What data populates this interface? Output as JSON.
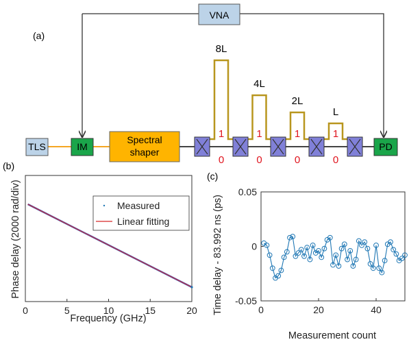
{
  "panel_a": {
    "label": "(a)",
    "vna": "VNA",
    "tls": "TLS",
    "im": "IM",
    "shaper_line1": "Spectral",
    "shaper_line2": "shaper",
    "pd": "PD",
    "delay_labels": [
      "8L",
      "4L",
      "2L",
      "L"
    ],
    "state_one": "1",
    "state_zero": "0",
    "colors": {
      "box_blue": "#bcd3e8",
      "box_green": "#1aa54a",
      "shaper_orange": "#ffb400",
      "delay_line": "#b8961e",
      "switch": "#8080d8",
      "fiber_orange": "#f5a623"
    }
  },
  "chart_data": [
    {
      "panel": "(b)",
      "type": "scatter",
      "xlabel": "Frequency (GHz)",
      "ylabel": "Phase delay (2000 rad/div)",
      "xlim": [
        0,
        20
      ],
      "xticks": [
        "0",
        "5",
        "10",
        "15",
        "20"
      ],
      "yticks_shown": false,
      "grid": false,
      "legend_position": "top-right",
      "series": [
        {
          "name": "Measured",
          "style": "dots",
          "color": "#1f77b4",
          "x": [
            0.3,
            20
          ],
          "y": [
            0,
            -5.1
          ]
        },
        {
          "name": "Linear fitting",
          "style": "line",
          "color": "#d62728",
          "x": [
            0.3,
            20
          ],
          "y": [
            0,
            -5.1
          ]
        }
      ]
    },
    {
      "panel": "(c)",
      "type": "line",
      "xlabel": "Measurement count",
      "ylabel": "Time delay - 83.992 ns (ps)",
      "xlim": [
        0,
        50
      ],
      "ylim": [
        -0.05,
        0.05
      ],
      "xticks": [
        "0",
        "20",
        "40"
      ],
      "yticks": [
        "-0.05",
        "0",
        "0.05"
      ],
      "grid": false,
      "series": [
        {
          "marker": "circle",
          "color": "#1f77b4",
          "x": [
            1,
            2,
            3,
            4,
            5,
            6,
            7,
            8,
            9,
            10,
            11,
            12,
            13,
            14,
            15,
            16,
            17,
            18,
            19,
            20,
            21,
            22,
            23,
            24,
            25,
            26,
            27,
            28,
            29,
            30,
            31,
            32,
            33,
            34,
            35,
            36,
            37,
            38,
            39,
            40,
            41,
            42,
            43,
            44,
            45,
            46,
            47,
            48,
            49,
            50
          ],
          "y": [
            0.003,
            0.001,
            -0.008,
            -0.02,
            -0.029,
            -0.027,
            -0.022,
            -0.01,
            -0.005,
            0.008,
            0.009,
            -0.009,
            -0.006,
            -0.003,
            -0.009,
            -0.001,
            -0.012,
            0.001,
            -0.006,
            -0.004,
            -0.01,
            -0.002,
            0.006,
            0.008,
            -0.017,
            -0.008,
            -0.018,
            -0.002,
            0.002,
            -0.012,
            -0.004,
            -0.018,
            -0.012,
            0.005,
            0.001,
            0.004,
            -0.002,
            -0.016,
            -0.02,
            0.001,
            -0.02,
            -0.024,
            -0.013,
            0.002,
            0.004,
            -0.003,
            -0.007,
            -0.013,
            -0.011,
            -0.008
          ]
        }
      ]
    }
  ]
}
